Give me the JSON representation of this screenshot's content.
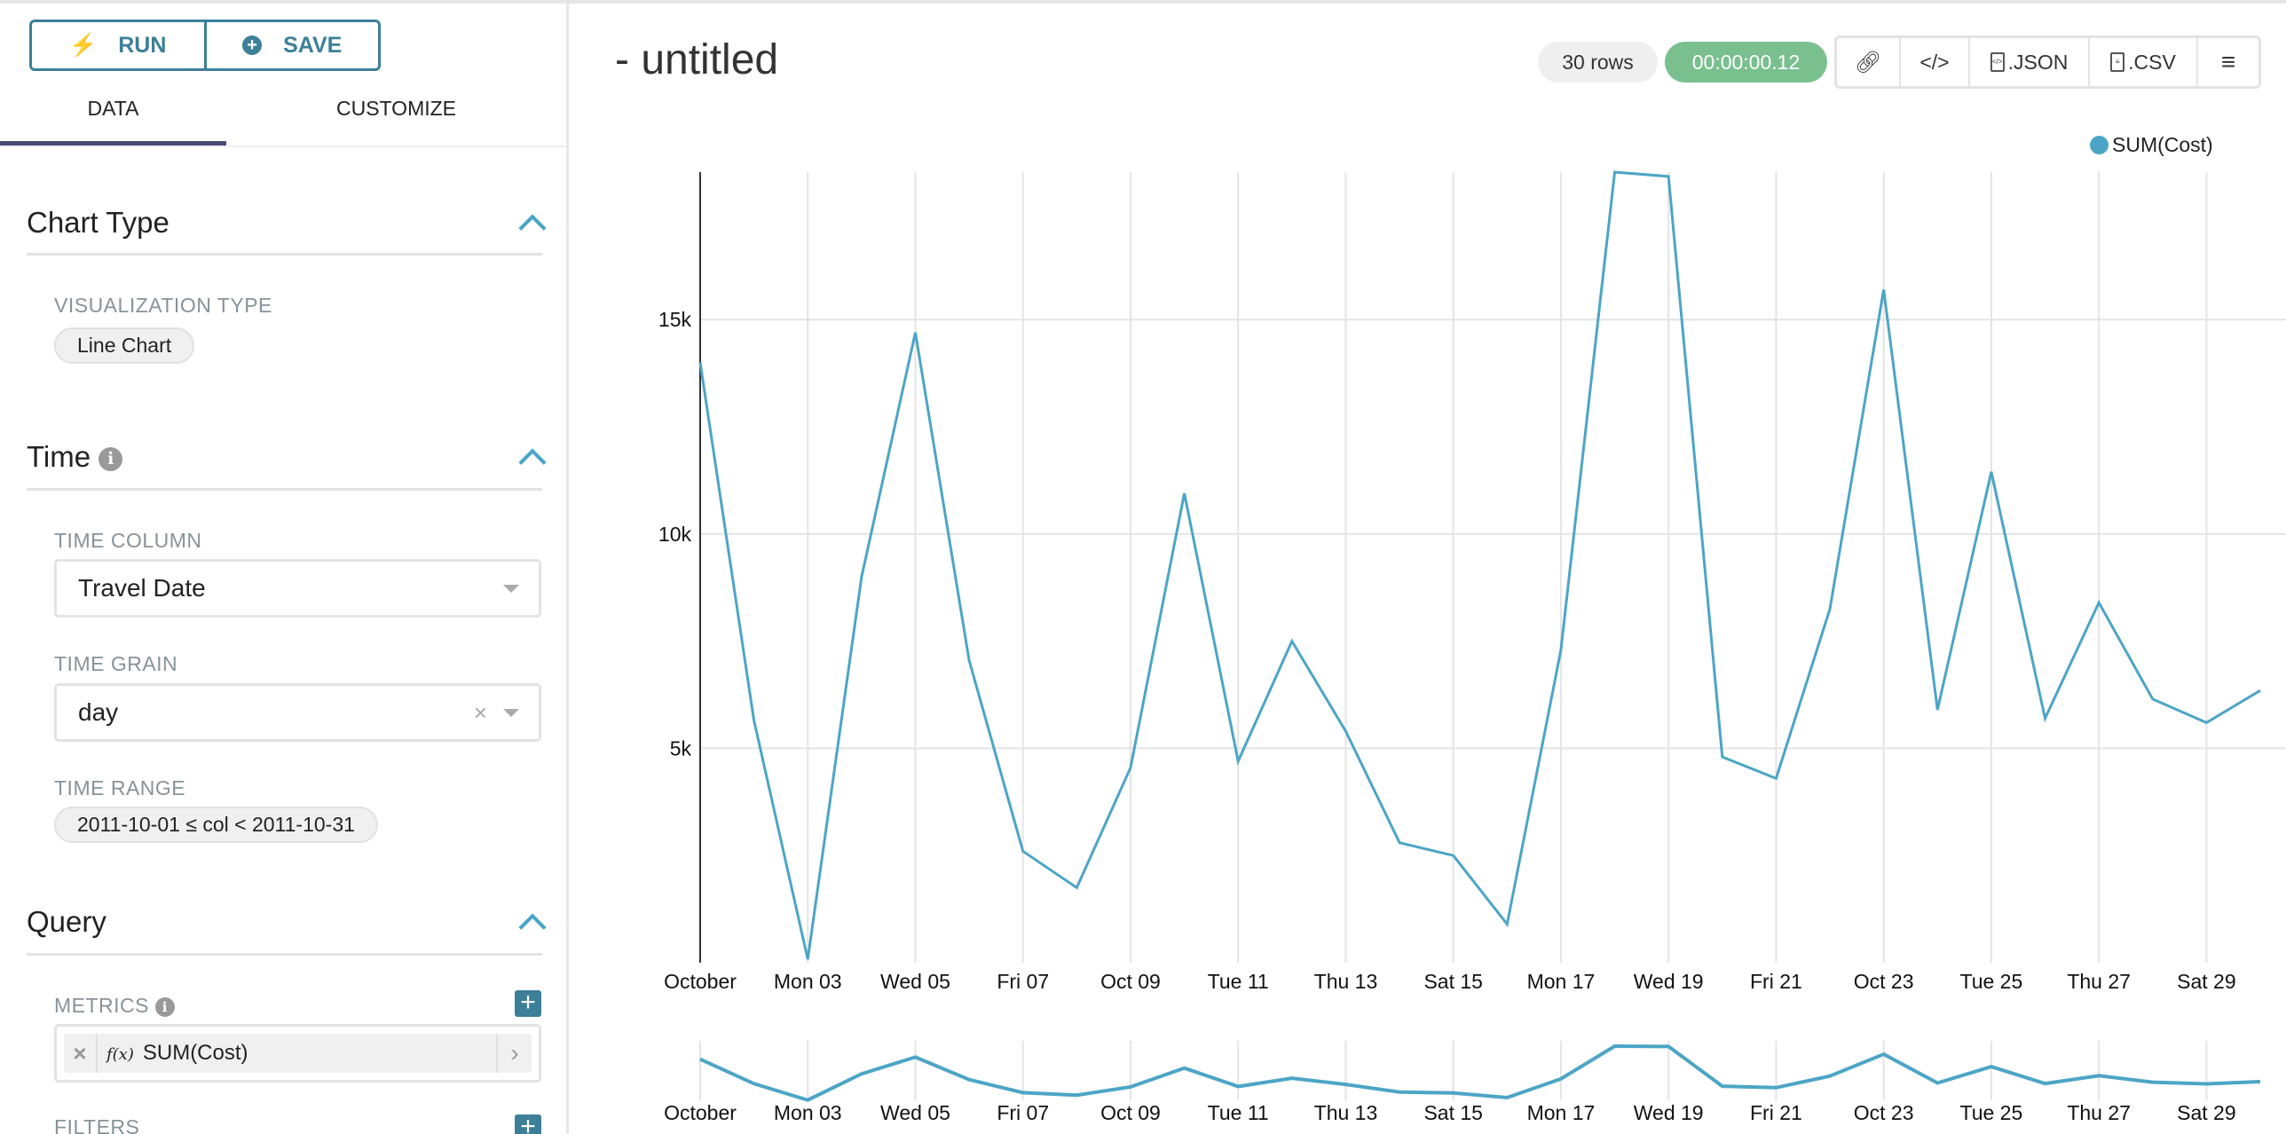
{
  "sidebar": {
    "run_label": "RUN",
    "save_label": "SAVE",
    "tabs": [
      {
        "label": "DATA",
        "active": true
      },
      {
        "label": "CUSTOMIZE",
        "active": false
      }
    ],
    "chart_type": {
      "title": "Chart Type",
      "viz_label": "VISUALIZATION TYPE",
      "viz_value": "Line Chart"
    },
    "time": {
      "title": "Time",
      "column_label": "TIME COLUMN",
      "column_value": "Travel Date",
      "grain_label": "TIME GRAIN",
      "grain_value": "day",
      "range_label": "TIME RANGE",
      "range_value": "2011-10-01 ≤ col < 2011-10-31"
    },
    "query": {
      "title": "Query",
      "metrics_label": "METRICS",
      "metric_fx": "f(x)",
      "metric_value": "SUM(Cost)",
      "filters_label": "FILTERS"
    }
  },
  "header": {
    "title": "- untitled",
    "rows_badge": "30 rows",
    "timer_badge": "00:00:00.12",
    "json_label": ".JSON",
    "csv_label": ".CSV"
  },
  "colors": {
    "accent": "#3d7f99",
    "series": "#4ca5c6",
    "timer": "#79c08e",
    "tab_underline": "#484c75"
  },
  "chart_data": {
    "type": "line",
    "legend": [
      "SUM(Cost)"
    ],
    "legend_placement": "top-right",
    "x": [
      "2011-10-01",
      "2011-10-02",
      "2011-10-03",
      "2011-10-04",
      "2011-10-05",
      "2011-10-06",
      "2011-10-07",
      "2011-10-08",
      "2011-10-09",
      "2011-10-10",
      "2011-10-11",
      "2011-10-12",
      "2011-10-13",
      "2011-10-14",
      "2011-10-15",
      "2011-10-16",
      "2011-10-17",
      "2011-10-18",
      "2011-10-19",
      "2011-10-20",
      "2011-10-21",
      "2011-10-22",
      "2011-10-23",
      "2011-10-24",
      "2011-10-25",
      "2011-10-26",
      "2011-10-27",
      "2011-10-28",
      "2011-10-29",
      "2011-10-30"
    ],
    "series": [
      {
        "name": "SUM(Cost)",
        "values": [
          14000,
          5650,
          80,
          9000,
          14700,
          7050,
          2600,
          1750,
          4550,
          10950,
          4700,
          7500,
          5400,
          2800,
          2500,
          900,
          7300,
          18440,
          18340,
          4800,
          4300,
          8250,
          15700,
          5900,
          11450,
          5700,
          8400,
          6150,
          5600,
          6350
        ]
      }
    ],
    "x_ticks": [
      "October",
      "Mon 03",
      "Wed 05",
      "Fri 07",
      "Oct 09",
      "Tue 11",
      "Thu 13",
      "Sat 15",
      "Mon 17",
      "Wed 19",
      "Fri 21",
      "Oct 23",
      "Tue 25",
      "Thu 27",
      "Sat 29"
    ],
    "y_ticks": [
      {
        "value": 5000,
        "label": "5k"
      },
      {
        "value": 10000,
        "label": "10k"
      },
      {
        "value": 15000,
        "label": "15k"
      }
    ],
    "ylim": [
      0,
      18440
    ],
    "grid": true,
    "range_selector": true
  }
}
